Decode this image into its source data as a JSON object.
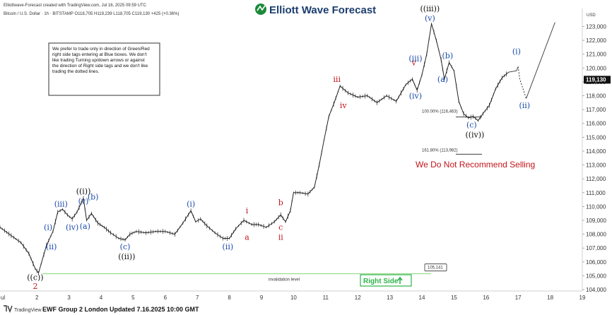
{
  "header": {
    "created_line": "Elliottwave-Forecast created with TradingView.com, Jul 16, 2025 09:59 UTC",
    "symbol_line": "Bitcoin / U.S. Dollar · 1h · BITSTAMP  O118,705  H119,239  L118,705  C119,130  +425 (+0.36%)",
    "logo": "Elliott Wave Forecast",
    "currency": "USD"
  },
  "note": {
    "lines": [
      "We prefer to trade only in direction of Green/Red",
      "right side tags entering at Blue boxes. We don't",
      "like trading Turning up/down arrows or against",
      "the direction of Right side tags and we don't like",
      "trading the dotted lines."
    ]
  },
  "warning": "We Do Not Recommend Selling",
  "invalidation": {
    "label": "invalidation level",
    "value_label": "105,141"
  },
  "right_side": {
    "label": "Right Side",
    "color": "#2db34a"
  },
  "footer": {
    "brand": "TradingView",
    "text": "EWF Group 2 London Updated 7.16.2025 10:00 GMT"
  },
  "price_tag": "119,130",
  "fib_labels": [
    "100.00% (116,463)",
    "161.80% (113,982)"
  ],
  "colors": {
    "blue": "#1a4aa8",
    "red": "#c2141a",
    "black": "#111111",
    "green": "#2db34a",
    "tag_bg": "#111111"
  },
  "chart_data": {
    "type": "line",
    "xlabel": "",
    "ylabel": "",
    "x_ticks": [
      "ul",
      "2",
      "3",
      "4",
      "5",
      "6",
      "7",
      "8",
      "9",
      "10",
      "11",
      "12",
      "13",
      "14",
      "15",
      "16",
      "17",
      "18",
      "19"
    ],
    "xlim": [
      0.85,
      19
    ],
    "y_ticks": [
      104000,
      105000,
      106000,
      107000,
      108000,
      109000,
      110000,
      111000,
      112000,
      113000,
      114000,
      115000,
      116000,
      117000,
      118000,
      119000,
      120000,
      121000,
      122000,
      123000
    ],
    "ylim": [
      103900,
      124300
    ],
    "series": [
      {
        "values_x": [
          0.85,
          1.2,
          1.5,
          1.75,
          1.95,
          2.05,
          2.3,
          2.5,
          2.65,
          2.8,
          2.95,
          3.1,
          3.25,
          3.45,
          3.55,
          3.7,
          3.9,
          4.1,
          4.3,
          4.55,
          4.75,
          4.9,
          5.1,
          5.4,
          5.7,
          6.0,
          6.3,
          6.55,
          6.8,
          6.95,
          7.1,
          7.3,
          7.55,
          7.8,
          8.0,
          8.2,
          8.45,
          8.7,
          8.9,
          9.15,
          9.4,
          9.6,
          9.75,
          9.9,
          10.0,
          10.2,
          10.45,
          10.65,
          10.8,
          10.95,
          11.1,
          11.25,
          11.45,
          11.7,
          12.0,
          12.3,
          12.6,
          12.9,
          13.2,
          13.5,
          13.7,
          13.85,
          14.0,
          14.15,
          14.3,
          14.45,
          14.6,
          14.7,
          14.85,
          15.0,
          15.15,
          15.3,
          15.45,
          15.6,
          15.75,
          15.9,
          16.1,
          16.3,
          16.5,
          16.7
        ],
        "values_y": [
          108500,
          107900,
          107400,
          106600,
          105500,
          105200,
          107200,
          108200,
          109600,
          109800,
          109400,
          109100,
          109600,
          110600,
          109000,
          109500,
          108800,
          108500,
          108100,
          107700,
          107600,
          108000,
          108200,
          108100,
          108200,
          108200,
          108000,
          108800,
          109700,
          108900,
          109100,
          108600,
          108100,
          107700,
          107700,
          108400,
          109000,
          108700,
          108700,
          108500,
          108900,
          109400,
          108900,
          109700,
          111000,
          111000,
          110900,
          111400,
          113000,
          114800,
          116500,
          117400,
          118700,
          118200,
          117900,
          118000,
          117500,
          118000,
          117600,
          118800,
          119200,
          118400,
          119500,
          121000,
          123200,
          122000,
          120600,
          119200,
          120400,
          119800,
          117600,
          116700,
          116400,
          116500,
          116200,
          116700,
          117300,
          118500,
          119300,
          119700
        ],
        "name": ""
      },
      {
        "name": "",
        "values_x": [
          16.7,
          16.95,
          17.0
        ],
        "values_y": [
          119700,
          119800,
          120100
        ]
      },
      {
        "name": "",
        "values_x": [
          17.0,
          17.05,
          17.25
        ],
        "values_y": [
          120100,
          119200,
          117800
        ]
      },
      {
        "name": "",
        "values_x": [
          17.25,
          18.15
        ],
        "values_y": [
          117800,
          123300
        ]
      }
    ],
    "wave_labels": [
      {
        "text": "((c))",
        "x": 1.95,
        "y": 104700,
        "color": "black"
      },
      {
        "text": "2",
        "x": 1.95,
        "y": 104050,
        "color": "red"
      },
      {
        "text": "(i)",
        "x": 2.35,
        "y": 108300,
        "color": "blue"
      },
      {
        "text": "(ii)",
        "x": 2.45,
        "y": 106900,
        "color": "blue"
      },
      {
        "text": "(iii)",
        "x": 2.75,
        "y": 110000,
        "color": "blue"
      },
      {
        "text": "(iv)",
        "x": 3.1,
        "y": 108300,
        "color": "blue"
      },
      {
        "text": "((i))",
        "x": 3.45,
        "y": 110900,
        "color": "black"
      },
      {
        "text": "(v)",
        "x": 3.45,
        "y": 110200,
        "color": "blue"
      },
      {
        "text": "(b)",
        "x": 3.75,
        "y": 110500,
        "color": "blue"
      },
      {
        "text": "(a)",
        "x": 3.5,
        "y": 108400,
        "color": "blue"
      },
      {
        "text": "(c)",
        "x": 4.75,
        "y": 106900,
        "color": "blue"
      },
      {
        "text": "((ii))",
        "x": 4.8,
        "y": 106200,
        "color": "black"
      },
      {
        "text": "(i)",
        "x": 6.8,
        "y": 110000,
        "color": "blue"
      },
      {
        "text": "(ii)",
        "x": 7.95,
        "y": 106900,
        "color": "blue"
      },
      {
        "text": "i",
        "x": 8.55,
        "y": 109500,
        "color": "red"
      },
      {
        "text": "a",
        "x": 8.55,
        "y": 107600,
        "color": "red"
      },
      {
        "text": "b",
        "x": 9.6,
        "y": 110100,
        "color": "red"
      },
      {
        "text": "c",
        "x": 9.6,
        "y": 108300,
        "color": "red"
      },
      {
        "text": "ii",
        "x": 9.6,
        "y": 107600,
        "color": "red"
      },
      {
        "text": "iii",
        "x": 11.35,
        "y": 119000,
        "color": "red"
      },
      {
        "text": "iv",
        "x": 11.55,
        "y": 117100,
        "color": "red"
      },
      {
        "text": "v",
        "x": 13.75,
        "y": 120200,
        "color": "red"
      },
      {
        "text": "(iii)",
        "x": 13.8,
        "y": 120500,
        "color": "blue"
      },
      {
        "text": "(iv)",
        "x": 13.8,
        "y": 117800,
        "color": "blue"
      },
      {
        "text": "((iii))",
        "x": 14.25,
        "y": 124100,
        "color": "black"
      },
      {
        "text": "(v)",
        "x": 14.25,
        "y": 123400,
        "color": "blue"
      },
      {
        "text": "(b)",
        "x": 14.8,
        "y": 120700,
        "color": "blue"
      },
      {
        "text": "(a)",
        "x": 14.65,
        "y": 119000,
        "color": "blue"
      },
      {
        "text": "(c)",
        "x": 15.55,
        "y": 115700,
        "color": "blue"
      },
      {
        "text": "((iv))",
        "x": 15.65,
        "y": 115000,
        "color": "black"
      },
      {
        "text": "(i)",
        "x": 16.95,
        "y": 121000,
        "color": "blue"
      },
      {
        "text": "(ii)",
        "x": 17.2,
        "y": 117100,
        "color": "blue"
      }
    ],
    "levels": [
      {
        "name": "invalidation",
        "value": 105141
      },
      {
        "name": "fib_100",
        "value": 116463
      },
      {
        "name": "fib_161_8",
        "value": 113982
      }
    ]
  }
}
